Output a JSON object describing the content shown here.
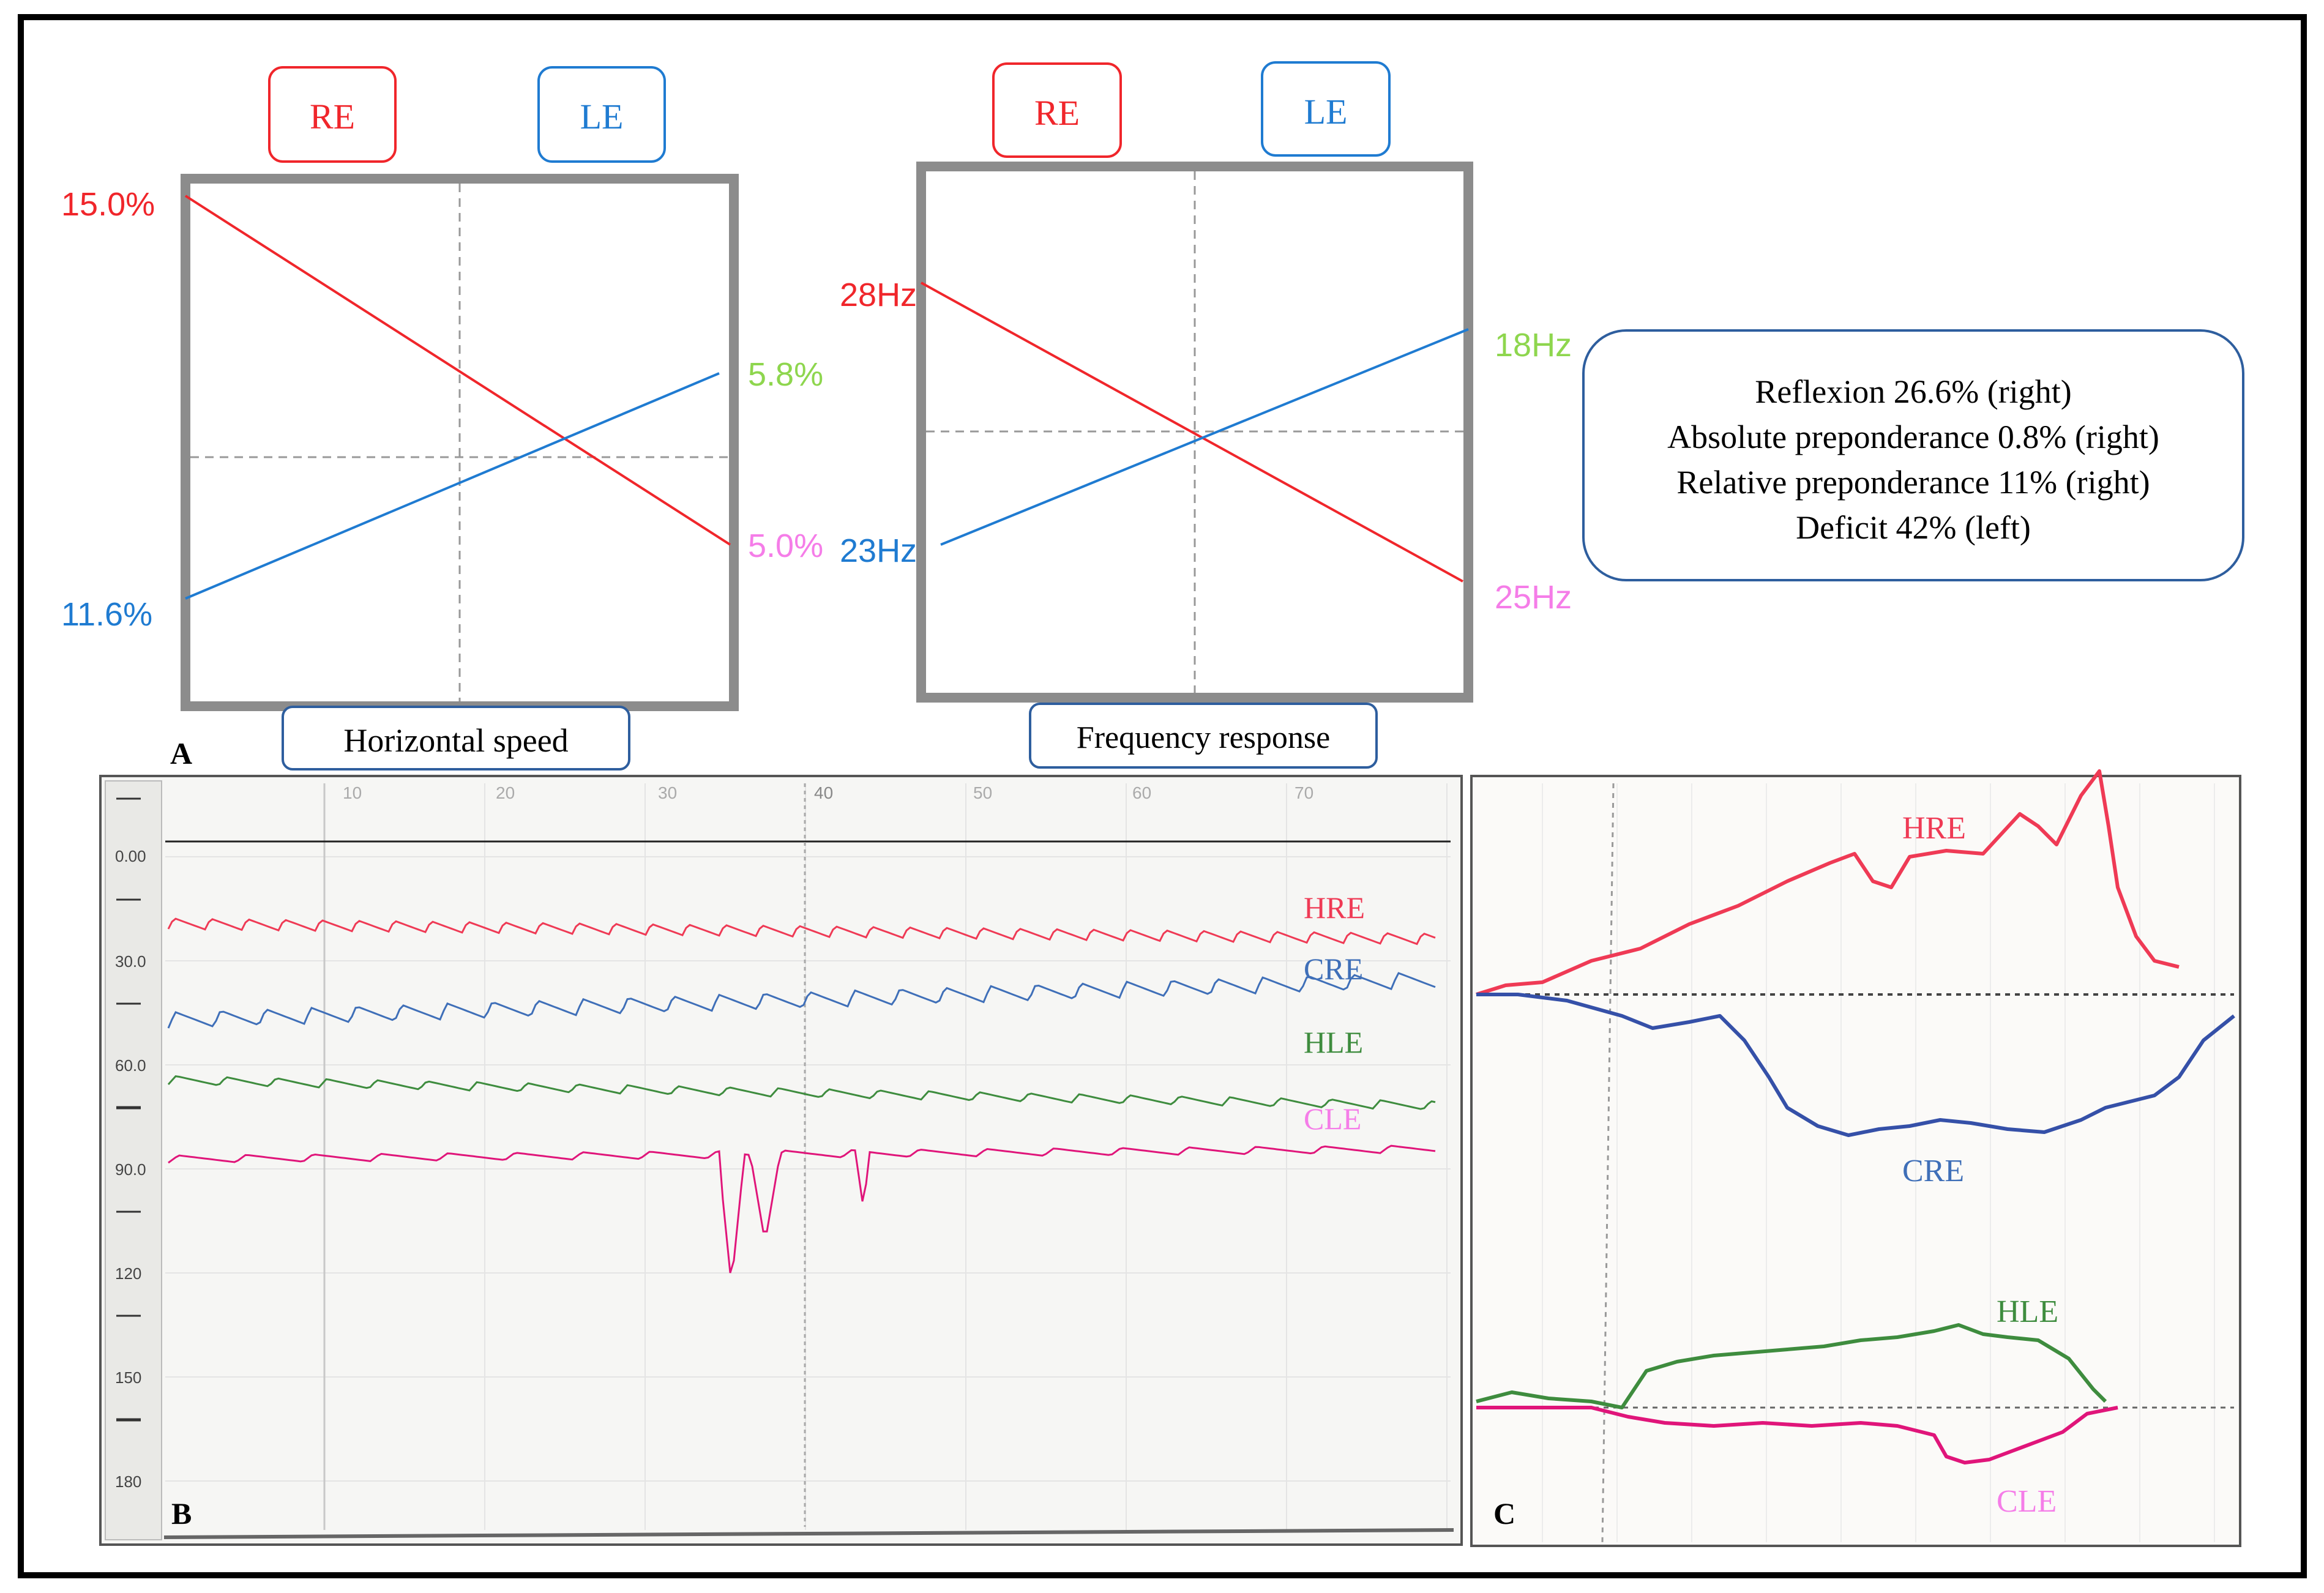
{
  "colors": {
    "red": "#f0262b",
    "blue": "#1f7bd1",
    "green": "#8ed64e",
    "pink": "#f57de8",
    "trace_green": "#3e8c3e",
    "trace_pink": "#e0157a",
    "trace_blue": "#3f6fb8",
    "trace_red": "#ef3a55",
    "box_blue": "#2e5e9e",
    "frame_gray": "#8c8c8c"
  },
  "panel_a": {
    "label": "A",
    "chart1": {
      "left_box": "RE",
      "right_box": "LE",
      "caption": "Horizontal speed",
      "re_start_label": "15.0%",
      "re_end_label": "5.0%",
      "le_start_label": "11.6%",
      "le_end_label": "5.8%"
    },
    "chart2": {
      "left_box": "RE",
      "right_box": "LE",
      "caption": "Frequency response",
      "re_start_label": "28Hz",
      "re_end_label": "25Hz",
      "le_start_label": "23Hz",
      "le_end_label": "18Hz"
    },
    "summary": [
      "Reflexion 26.6% (right)",
      "Absolute preponderance 0.8% (right)",
      "Relative preponderance 11% (right)",
      "Deficit 42% (left)"
    ]
  },
  "panel_b": {
    "label": "B",
    "x_ticks": [
      "10",
      "20",
      "30",
      "40",
      "50",
      "60",
      "70"
    ],
    "y_ticks": [
      "0.00",
      "30.0",
      "60.0",
      "90.0",
      "120",
      "150",
      "180"
    ],
    "traces": [
      "HRE",
      "CRE",
      "HLE",
      "CLE"
    ]
  },
  "panel_c": {
    "label": "C",
    "traces": [
      "HRE",
      "CRE",
      "HLE",
      "CLE"
    ]
  },
  "chart_data": [
    {
      "type": "line",
      "caption": "Horizontal speed",
      "x": [
        "RE",
        "LE"
      ],
      "series": [
        {
          "name": "RE",
          "values": [
            15.0,
            5.0
          ]
        },
        {
          "name": "LE",
          "values": [
            11.6,
            5.8
          ]
        }
      ],
      "units": "%"
    },
    {
      "type": "line",
      "caption": "Frequency response",
      "x": [
        "RE",
        "LE"
      ],
      "series": [
        {
          "name": "RE",
          "values": [
            28,
            25
          ]
        },
        {
          "name": "LE",
          "values": [
            23,
            18
          ]
        }
      ],
      "units": "Hz"
    }
  ]
}
